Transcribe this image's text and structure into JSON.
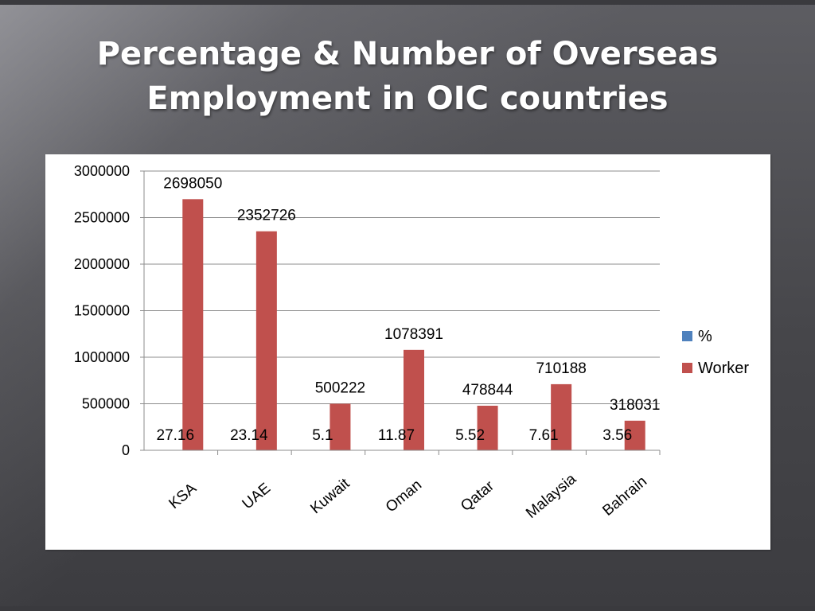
{
  "slide": {
    "title_line1": "Percentage & Number of Overseas",
    "title_line2": "Employment in OIC countries"
  },
  "chart_data": {
    "type": "bar",
    "title": "",
    "categories": [
      "KSA",
      "UAE",
      "Kuwait",
      "Oman",
      "Qatar",
      "Malaysia",
      "Bahrain"
    ],
    "series": [
      {
        "name": "%",
        "color": "#4f81bd",
        "values": [
          27.16,
          23.14,
          5.1,
          11.87,
          5.52,
          7.61,
          3.56
        ],
        "labels": [
          "27.16",
          "23.14",
          "5.1",
          "11.87",
          "5.52",
          "7.61",
          "3.56"
        ]
      },
      {
        "name": "Worker",
        "color": "#c0504d",
        "values": [
          2698050,
          2352726,
          500222,
          1078391,
          478844,
          710188,
          318031
        ],
        "labels": [
          "2698050",
          "2352726",
          "500222",
          "1078391",
          "478844",
          "710188",
          "318031"
        ]
      }
    ],
    "yticks": [
      0,
      500000,
      1000000,
      1500000,
      2000000,
      2500000,
      3000000
    ],
    "ytick_labels": [
      "0",
      "500000",
      "1000000",
      "1500000",
      "2000000",
      "2500000",
      "3000000"
    ],
    "ylim": [
      0,
      3000000
    ],
    "grid": true,
    "legend": "right"
  }
}
